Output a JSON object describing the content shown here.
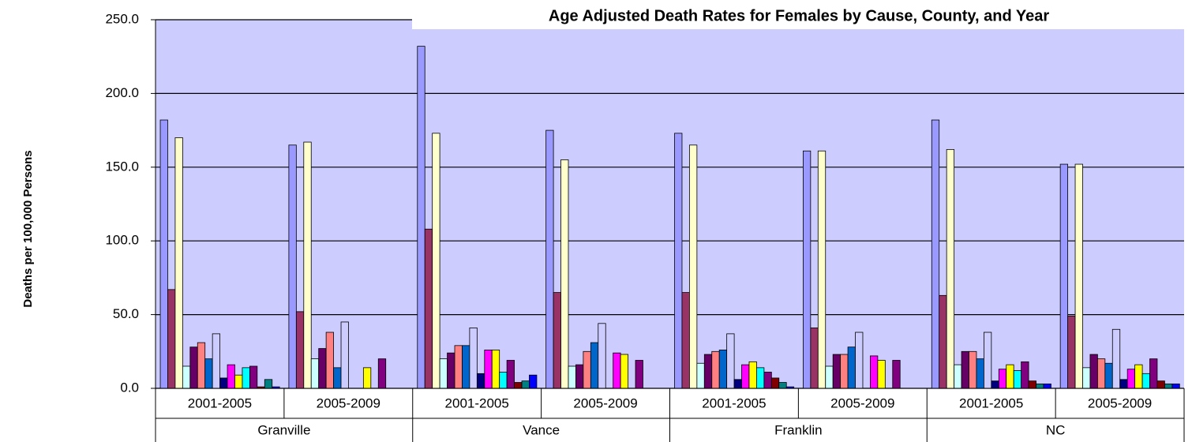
{
  "chart_data": {
    "type": "bar",
    "title": "Age Adjusted Death Rates for Females by Cause, County, and Year",
    "y_label": "Deaths per 100,000 Persons",
    "categories": [
      "2001-2005",
      "2005-2009",
      "2001-2005",
      "2005-2009",
      "2001-2005",
      "2005-2009",
      "2001-2005",
      "2005-2009"
    ],
    "groups": [
      "Granville",
      "Vance",
      "Franklin",
      "NC"
    ],
    "ylim": [
      0,
      250
    ],
    "yticks": [
      {
        "value": 0,
        "label": "0.0"
      },
      {
        "value": 50,
        "label": "50.0"
      },
      {
        "value": 100,
        "label": "100.0"
      },
      {
        "value": 150,
        "label": "150.0"
      },
      {
        "value": 200,
        "label": "200.0"
      },
      {
        "value": 250,
        "label": "250.0"
      }
    ],
    "grid": true,
    "plot_background": "#ccccff",
    "series": [
      {
        "color": "#9999ff",
        "values": [
          182,
          165,
          232,
          175,
          173,
          161,
          182,
          152
        ]
      },
      {
        "color": "#993366",
        "values": [
          67,
          52,
          108,
          65,
          65,
          41,
          63,
          49
        ]
      },
      {
        "color": "#ffffcc",
        "values": [
          170,
          167,
          173,
          155,
          165,
          161,
          162,
          152
        ]
      },
      {
        "color": "#ccffff",
        "values": [
          15,
          20,
          20,
          15,
          17,
          15,
          16,
          14
        ]
      },
      {
        "color": "#660066",
        "values": [
          28,
          27,
          24,
          16,
          23,
          23,
          25,
          23
        ]
      },
      {
        "color": "#ff8080",
        "values": [
          31,
          38,
          29,
          25,
          25,
          23,
          25,
          20
        ]
      },
      {
        "color": "#0066cc",
        "values": [
          20,
          14,
          29,
          31,
          26,
          28,
          20,
          17
        ]
      },
      {
        "color": "#ccccff",
        "values": [
          37,
          45,
          41,
          44,
          37,
          38,
          38,
          40
        ]
      },
      {
        "color": "#000080",
        "values": [
          7,
          null,
          10,
          null,
          6,
          null,
          5,
          6
        ]
      },
      {
        "color": "#ff00ff",
        "values": [
          16,
          null,
          26,
          24,
          16,
          22,
          13,
          13
        ]
      },
      {
        "color": "#ffff00",
        "values": [
          9,
          14,
          26,
          23,
          18,
          19,
          16,
          16
        ]
      },
      {
        "color": "#00ffff",
        "values": [
          14,
          null,
          11,
          null,
          14,
          null,
          12,
          10
        ]
      },
      {
        "color": "#800080",
        "values": [
          15,
          20,
          19,
          19,
          11,
          19,
          18,
          20
        ]
      },
      {
        "color": "#800000",
        "values": [
          1,
          null,
          4,
          null,
          7,
          null,
          5,
          5
        ]
      },
      {
        "color": "#008080",
        "values": [
          6,
          null,
          5,
          null,
          4,
          null,
          3,
          3
        ]
      },
      {
        "color": "#0000ff",
        "values": [
          1,
          null,
          9,
          null,
          1,
          null,
          3,
          3
        ]
      }
    ]
  }
}
